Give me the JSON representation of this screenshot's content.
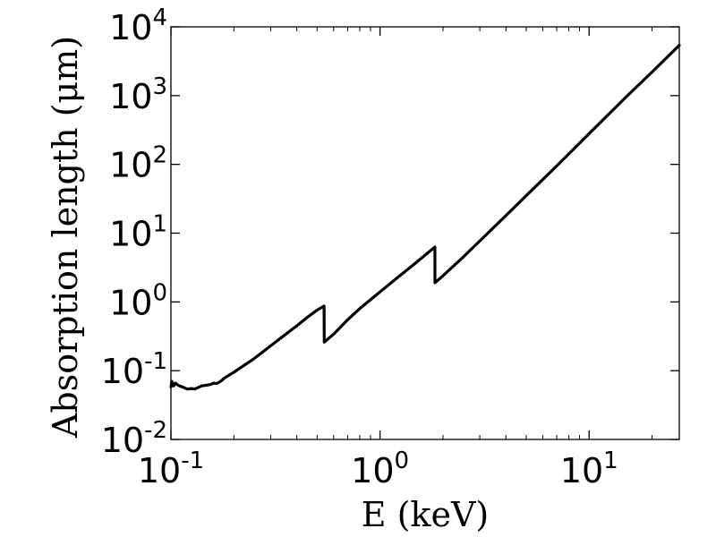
{
  "chart_data": {
    "type": "line",
    "title": "",
    "xlabel": "E (keV)",
    "ylabel": "Absorption length (μm)",
    "x_scale": "log",
    "y_scale": "log",
    "xlim": [
      0.1,
      27
    ],
    "ylim": [
      0.01,
      10000
    ],
    "grid": false,
    "x_ticks": [
      {
        "value": 0.1,
        "base": "10",
        "exp": "-1"
      },
      {
        "value": 1,
        "base": "10",
        "exp": "0"
      },
      {
        "value": 10,
        "base": "10",
        "exp": "1"
      }
    ],
    "y_ticks": [
      {
        "value": 0.01,
        "base": "10",
        "exp": "-2"
      },
      {
        "value": 0.1,
        "base": "10",
        "exp": "-1"
      },
      {
        "value": 1,
        "base": "10",
        "exp": "0"
      },
      {
        "value": 10,
        "base": "10",
        "exp": "1"
      },
      {
        "value": 100,
        "base": "10",
        "exp": "2"
      },
      {
        "value": 1000,
        "base": "10",
        "exp": "3"
      },
      {
        "value": 10000,
        "base": "10",
        "exp": "4"
      }
    ],
    "series": [
      {
        "color": "#000000",
        "x": [
          0.1,
          0.101,
          0.103,
          0.105,
          0.107,
          0.11,
          0.115,
          0.12,
          0.125,
          0.13,
          0.135,
          0.14,
          0.145,
          0.15,
          0.155,
          0.16,
          0.165,
          0.17,
          0.175,
          0.18,
          0.2,
          0.25,
          0.3,
          0.35,
          0.4,
          0.45,
          0.5,
          0.54,
          0.541,
          0.6,
          0.7,
          0.8,
          1.0,
          1.2,
          1.5,
          1.83,
          1.831,
          2.0,
          2.5,
          3.0,
          4.0,
          5.0,
          7.0,
          10.0,
          15.0,
          20.0,
          27.0
        ],
        "y": [
          0.058,
          0.07,
          0.06,
          0.066,
          0.063,
          0.06,
          0.057,
          0.054,
          0.055,
          0.054,
          0.057,
          0.06,
          0.061,
          0.062,
          0.063,
          0.066,
          0.065,
          0.068,
          0.072,
          0.078,
          0.095,
          0.15,
          0.23,
          0.33,
          0.45,
          0.6,
          0.76,
          0.87,
          0.26,
          0.34,
          0.55,
          0.8,
          1.4,
          2.2,
          3.8,
          6.3,
          1.9,
          2.4,
          4.5,
          7.7,
          18,
          35,
          95,
          280,
          950,
          2200,
          5400
        ]
      }
    ]
  }
}
